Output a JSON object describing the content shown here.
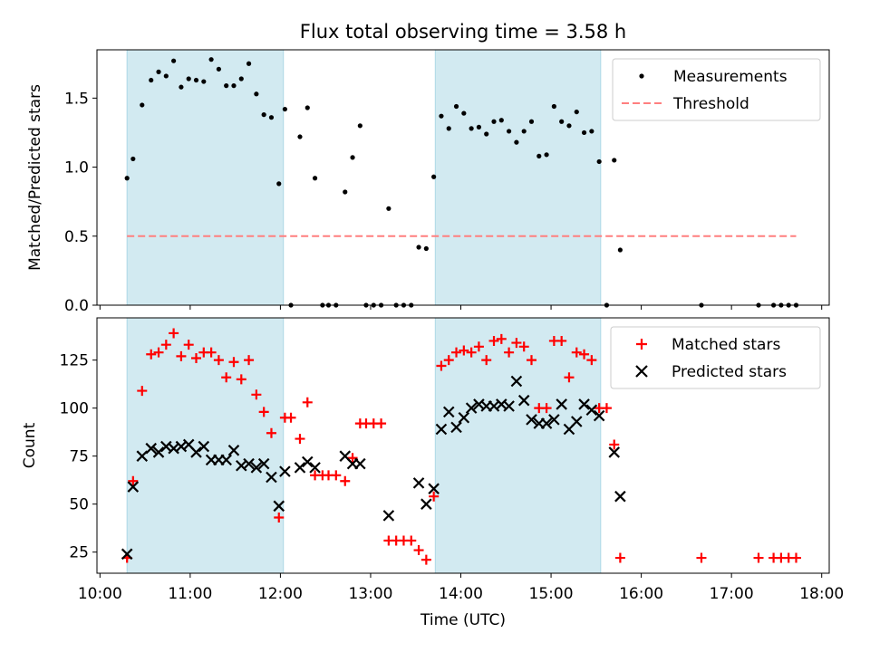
{
  "title": "Flux total observing time = 3.58 h",
  "chart_data": [
    {
      "type": "scatter",
      "ylabel": "Matched/Predicted stars",
      "xlim": [
        "09:58",
        "18:05"
      ],
      "ylim": [
        0,
        1.85
      ],
      "yticks": [
        0.0,
        0.5,
        1.0,
        1.5
      ],
      "ytick_labels": [
        "0.0",
        "0.5",
        "1.0",
        "1.5"
      ],
      "shaded_intervals": [
        [
          "10:18",
          "12:02"
        ],
        [
          "13:43",
          "15:33"
        ]
      ],
      "shade_color": "#add8e6",
      "legend": {
        "position": "top-right",
        "entries": [
          "Measurements",
          "Threshold"
        ]
      },
      "series": [
        {
          "name": "Measurements",
          "marker": "dot",
          "color": "#000000",
          "points": [
            [
              "10:18",
              0.92
            ],
            [
              "10:22",
              1.06
            ],
            [
              "10:28",
              1.45
            ],
            [
              "10:34",
              1.63
            ],
            [
              "10:39",
              1.69
            ],
            [
              "10:44",
              1.66
            ],
            [
              "10:49",
              1.77
            ],
            [
              "10:54",
              1.58
            ],
            [
              "10:59",
              1.64
            ],
            [
              "11:04",
              1.63
            ],
            [
              "11:09",
              1.62
            ],
            [
              "11:14",
              1.78
            ],
            [
              "11:19",
              1.71
            ],
            [
              "11:24",
              1.59
            ],
            [
              "11:29",
              1.59
            ],
            [
              "11:34",
              1.64
            ],
            [
              "11:39",
              1.75
            ],
            [
              "11:44",
              1.53
            ],
            [
              "11:49",
              1.38
            ],
            [
              "11:54",
              1.36
            ],
            [
              "11:59",
              0.88
            ],
            [
              "12:03",
              1.42
            ],
            [
              "12:07",
              0.0
            ],
            [
              "12:13",
              1.22
            ],
            [
              "12:18",
              1.43
            ],
            [
              "12:23",
              0.92
            ],
            [
              "12:28",
              0.0
            ],
            [
              "12:32",
              0.0
            ],
            [
              "12:37",
              0.0
            ],
            [
              "12:43",
              0.82
            ],
            [
              "12:48",
              1.07
            ],
            [
              "12:53",
              1.3
            ],
            [
              "12:57",
              0.0
            ],
            [
              "13:02",
              0.0
            ],
            [
              "13:07",
              0.0
            ],
            [
              "13:12",
              0.7
            ],
            [
              "13:17",
              0.0
            ],
            [
              "13:22",
              0.0
            ],
            [
              "13:27",
              0.0
            ],
            [
              "13:32",
              0.42
            ],
            [
              "13:37",
              0.41
            ],
            [
              "13:42",
              0.93
            ],
            [
              "13:47",
              1.37
            ],
            [
              "13:52",
              1.28
            ],
            [
              "13:57",
              1.44
            ],
            [
              "14:02",
              1.39
            ],
            [
              "14:07",
              1.28
            ],
            [
              "14:12",
              1.29
            ],
            [
              "14:17",
              1.24
            ],
            [
              "14:22",
              1.33
            ],
            [
              "14:27",
              1.34
            ],
            [
              "14:32",
              1.26
            ],
            [
              "14:37",
              1.18
            ],
            [
              "14:42",
              1.26
            ],
            [
              "14:47",
              1.33
            ],
            [
              "14:52",
              1.08
            ],
            [
              "14:57",
              1.09
            ],
            [
              "15:02",
              1.44
            ],
            [
              "15:07",
              1.33
            ],
            [
              "15:12",
              1.3
            ],
            [
              "15:17",
              1.4
            ],
            [
              "15:22",
              1.25
            ],
            [
              "15:27",
              1.26
            ],
            [
              "15:32",
              1.04
            ],
            [
              "15:37",
              0.0
            ],
            [
              "15:42",
              1.05
            ],
            [
              "15:46",
              0.4
            ],
            [
              "16:40",
              0.0
            ],
            [
              "17:18",
              0.0
            ],
            [
              "17:28",
              0.0
            ],
            [
              "17:33",
              0.0
            ],
            [
              "17:38",
              0.0
            ],
            [
              "17:43",
              0.0
            ]
          ]
        },
        {
          "name": "Threshold",
          "style": "dashed",
          "color": "#ff7f7f",
          "points": [
            [
              "10:18",
              0.5
            ],
            [
              "17:43",
              0.5
            ]
          ]
        }
      ]
    },
    {
      "type": "scatter",
      "xlabel": "Time (UTC)",
      "ylabel": "Count",
      "xlim": [
        "09:58",
        "18:05"
      ],
      "ylim": [
        14,
        147
      ],
      "yticks": [
        25,
        50,
        75,
        100,
        125
      ],
      "ytick_labels": [
        "25",
        "50",
        "75",
        "100",
        "125"
      ],
      "xticks": [
        "10:00",
        "11:00",
        "12:00",
        "13:00",
        "14:00",
        "15:00",
        "16:00",
        "17:00",
        "18:00"
      ],
      "xtick_labels": [
        "10:00",
        "11:00",
        "12:00",
        "13:00",
        "14:00",
        "15:00",
        "16:00",
        "17:00",
        "18:00"
      ],
      "shaded_intervals": [
        [
          "10:18",
          "12:02"
        ],
        [
          "13:43",
          "15:33"
        ]
      ],
      "shade_color": "#add8e6",
      "legend": {
        "position": "top-right",
        "entries": [
          "Matched stars",
          "Predicted stars"
        ]
      },
      "series": [
        {
          "name": "Matched stars",
          "marker": "plus",
          "color": "#ff0000",
          "points": [
            [
              "10:18",
              22
            ],
            [
              "10:22",
              62
            ],
            [
              "10:28",
              109
            ],
            [
              "10:34",
              128
            ],
            [
              "10:39",
              129
            ],
            [
              "10:44",
              133
            ],
            [
              "10:49",
              139
            ],
            [
              "10:54",
              127
            ],
            [
              "10:59",
              133
            ],
            [
              "11:04",
              126
            ],
            [
              "11:09",
              129
            ],
            [
              "11:14",
              129
            ],
            [
              "11:19",
              125
            ],
            [
              "11:24",
              116
            ],
            [
              "11:29",
              124
            ],
            [
              "11:34",
              115
            ],
            [
              "11:39",
              125
            ],
            [
              "11:44",
              107
            ],
            [
              "11:49",
              98
            ],
            [
              "11:54",
              87
            ],
            [
              "11:59",
              43
            ],
            [
              "12:03",
              95
            ],
            [
              "12:07",
              95
            ],
            [
              "12:13",
              84
            ],
            [
              "12:18",
              103
            ],
            [
              "12:23",
              65
            ],
            [
              "12:28",
              65
            ],
            [
              "12:32",
              65
            ],
            [
              "12:37",
              65
            ],
            [
              "12:43",
              62
            ],
            [
              "12:48",
              74
            ],
            [
              "12:53",
              92
            ],
            [
              "12:57",
              92
            ],
            [
              "13:02",
              92
            ],
            [
              "13:07",
              92
            ],
            [
              "13:12",
              31
            ],
            [
              "13:17",
              31
            ],
            [
              "13:22",
              31
            ],
            [
              "13:27",
              31
            ],
            [
              "13:32",
              26
            ],
            [
              "13:37",
              21
            ],
            [
              "13:42",
              54
            ],
            [
              "13:47",
              122
            ],
            [
              "13:52",
              125
            ],
            [
              "13:57",
              129
            ],
            [
              "14:02",
              130
            ],
            [
              "14:07",
              129
            ],
            [
              "14:12",
              132
            ],
            [
              "14:17",
              125
            ],
            [
              "14:22",
              135
            ],
            [
              "14:27",
              136
            ],
            [
              "14:32",
              129
            ],
            [
              "14:37",
              134
            ],
            [
              "14:42",
              132
            ],
            [
              "14:47",
              125
            ],
            [
              "14:52",
              100
            ],
            [
              "14:57",
              100
            ],
            [
              "15:02",
              135
            ],
            [
              "15:07",
              135
            ],
            [
              "15:12",
              116
            ],
            [
              "15:17",
              129
            ],
            [
              "15:22",
              128
            ],
            [
              "15:27",
              125
            ],
            [
              "15:32",
              100
            ],
            [
              "15:37",
              100
            ],
            [
              "15:42",
              81
            ],
            [
              "15:46",
              22
            ],
            [
              "16:40",
              22
            ],
            [
              "17:18",
              22
            ],
            [
              "17:28",
              22
            ],
            [
              "17:33",
              22
            ],
            [
              "17:38",
              22
            ],
            [
              "17:43",
              22
            ]
          ]
        },
        {
          "name": "Predicted stars",
          "marker": "x",
          "color": "#000000",
          "points": [
            [
              "10:18",
              24
            ],
            [
              "10:22",
              59
            ],
            [
              "10:28",
              75
            ],
            [
              "10:34",
              79
            ],
            [
              "10:39",
              77
            ],
            [
              "10:44",
              80
            ],
            [
              "10:49",
              79
            ],
            [
              "10:54",
              80
            ],
            [
              "10:59",
              81
            ],
            [
              "11:04",
              77
            ],
            [
              "11:09",
              80
            ],
            [
              "11:14",
              73
            ],
            [
              "11:19",
              73
            ],
            [
              "11:24",
              73
            ],
            [
              "11:29",
              78
            ],
            [
              "11:34",
              70
            ],
            [
              "11:39",
              71
            ],
            [
              "11:44",
              69
            ],
            [
              "11:49",
              71
            ],
            [
              "11:54",
              64
            ],
            [
              "11:59",
              49
            ],
            [
              "12:03",
              67
            ],
            [
              "12:13",
              69
            ],
            [
              "12:18",
              72
            ],
            [
              "12:23",
              69
            ],
            [
              "12:43",
              75
            ],
            [
              "12:48",
              71
            ],
            [
              "12:53",
              71
            ],
            [
              "13:12",
              44
            ],
            [
              "13:32",
              61
            ],
            [
              "13:37",
              50
            ],
            [
              "13:42",
              58
            ],
            [
              "13:47",
              89
            ],
            [
              "13:52",
              98
            ],
            [
              "13:57",
              90
            ],
            [
              "14:02",
              95
            ],
            [
              "14:07",
              100
            ],
            [
              "14:12",
              102
            ],
            [
              "14:17",
              101
            ],
            [
              "14:22",
              101
            ],
            [
              "14:27",
              102
            ],
            [
              "14:32",
              101
            ],
            [
              "14:37",
              114
            ],
            [
              "14:42",
              104
            ],
            [
              "14:47",
              94
            ],
            [
              "14:52",
              92
            ],
            [
              "14:57",
              92
            ],
            [
              "15:02",
              94
            ],
            [
              "15:07",
              102
            ],
            [
              "15:12",
              89
            ],
            [
              "15:17",
              93
            ],
            [
              "15:22",
              102
            ],
            [
              "15:27",
              99
            ],
            [
              "15:32",
              96
            ],
            [
              "15:42",
              77
            ],
            [
              "15:46",
              54
            ]
          ]
        }
      ]
    }
  ]
}
